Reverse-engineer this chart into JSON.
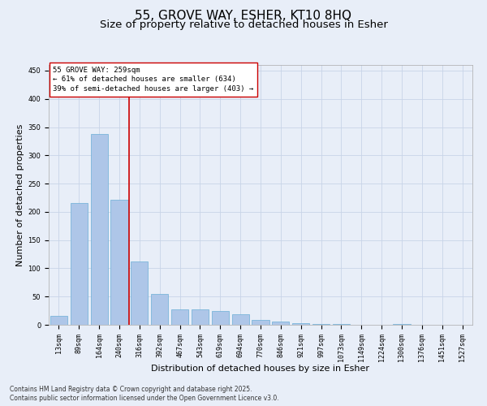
{
  "title": "55, GROVE WAY, ESHER, KT10 8HQ",
  "subtitle": "Size of property relative to detached houses in Esher",
  "xlabel": "Distribution of detached houses by size in Esher",
  "ylabel": "Number of detached properties",
  "categories": [
    "13sqm",
    "89sqm",
    "164sqm",
    "240sqm",
    "316sqm",
    "392sqm",
    "467sqm",
    "543sqm",
    "619sqm",
    "694sqm",
    "770sqm",
    "846sqm",
    "921sqm",
    "997sqm",
    "1073sqm",
    "1149sqm",
    "1224sqm",
    "1300sqm",
    "1376sqm",
    "1451sqm",
    "1527sqm"
  ],
  "values": [
    16,
    216,
    338,
    222,
    112,
    54,
    27,
    27,
    25,
    18,
    8,
    6,
    3,
    1,
    1,
    0,
    0,
    1,
    0,
    0,
    0
  ],
  "bar_color": "#aec6e8",
  "bar_edge_color": "#6baed6",
  "grid_color": "#c8d4e8",
  "background_color": "#e8eef8",
  "vline_x": 3.5,
  "vline_color": "#cc0000",
  "annotation_text": "55 GROVE WAY: 259sqm\n← 61% of detached houses are smaller (634)\n39% of semi-detached houses are larger (403) →",
  "annotation_box_color": "#ffffff",
  "annotation_edge_color": "#cc0000",
  "ylim": [
    0,
    460
  ],
  "yticks": [
    0,
    50,
    100,
    150,
    200,
    250,
    300,
    350,
    400,
    450
  ],
  "footer_line1": "Contains HM Land Registry data © Crown copyright and database right 2025.",
  "footer_line2": "Contains public sector information licensed under the Open Government Licence v3.0.",
  "title_fontsize": 11,
  "subtitle_fontsize": 9.5,
  "tick_fontsize": 6,
  "label_fontsize": 8,
  "annotation_fontsize": 6.5,
  "footer_fontsize": 5.5
}
